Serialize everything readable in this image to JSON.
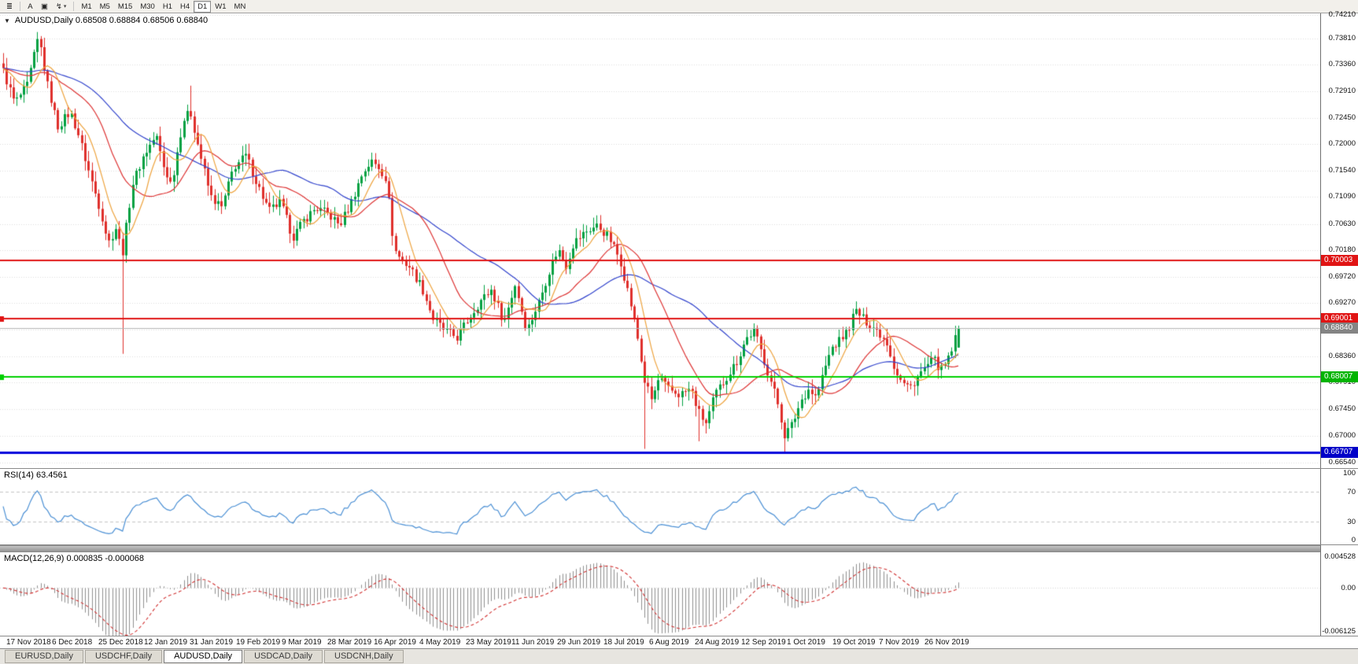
{
  "toolbar": {
    "icons": [
      {
        "name": "bar-chart-icon",
        "glyph": "≣"
      },
      {
        "name": "text-annotation-icon",
        "glyph": "A"
      },
      {
        "name": "template-icon",
        "glyph": "▣"
      },
      {
        "name": "indicators-zigzag-icon",
        "glyph": "↯",
        "caret": "▾"
      }
    ],
    "timeframes": [
      {
        "label": "M1"
      },
      {
        "label": "M5"
      },
      {
        "label": "M15"
      },
      {
        "label": "M30"
      },
      {
        "label": "H1"
      },
      {
        "label": "H4"
      },
      {
        "label": "D1",
        "active": true
      },
      {
        "label": "W1"
      },
      {
        "label": "MN"
      }
    ]
  },
  "chart": {
    "collapse_glyph": "▼",
    "title": "AUDUSD,Daily 0.68508 0.68884 0.68506 0.68840",
    "price_axis": [
      "0.74210",
      "0.73810",
      "0.73360",
      "0.72910",
      "0.72450",
      "0.72000",
      "0.71540",
      "0.71090",
      "0.70630",
      "0.70180",
      "0.69720",
      "0.69270",
      "0.68810",
      "0.68360",
      "0.67910",
      "0.67450",
      "0.67000",
      "0.66540"
    ]
  },
  "rsi": {
    "label": "RSI(14) 63.4561",
    "upper": 70,
    "lower": 30,
    "axis": [
      {
        "label": "100",
        "value": 100
      },
      {
        "label": "70",
        "value": 70
      },
      {
        "label": "30",
        "value": 30
      },
      {
        "label": "0",
        "value": 0
      }
    ]
  },
  "macd": {
    "label": "MACD(12,26,9) 0.000835 -0.000068",
    "axis": [
      {
        "label": "0.004528",
        "value": 0.004528
      },
      {
        "label": "0.00",
        "value": 0
      },
      {
        "label": "-0.006125",
        "value": -0.006125
      }
    ]
  },
  "dates": [
    "17 Nov 2018",
    "6 Dec 2018",
    "25 Dec 2018",
    "12 Jan 2019",
    "31 Jan 2019",
    "19 Feb 2019",
    "9 Mar 2019",
    "28 Mar 2019",
    "16 Apr 2019",
    "4 May 2019",
    "23 May 2019",
    "11 Jun 2019",
    "29 Jun 2019",
    "18 Jul 2019",
    "6 Aug 2019",
    "24 Aug 2019",
    "12 Sep 2019",
    "1 Oct 2019",
    "19 Oct 2019",
    "7 Nov 2019",
    "26 Nov 2019"
  ],
  "tabs": [
    {
      "label": "EURUSD,Daily"
    },
    {
      "label": "USDCHF,Daily"
    },
    {
      "label": "AUDUSD,Daily",
      "active": true
    },
    {
      "label": "USDCAD,Daily"
    },
    {
      "label": "USDCNH,Daily"
    }
  ],
  "colors": {
    "up": "#00a041",
    "down": "#df2f2b",
    "ma_fast": "#eda23c",
    "ma_mid": "#dd3333",
    "ma_slow": "#3244cc",
    "rsi_line": "#4a8fd4",
    "rsi_levels": "#c4c4c4",
    "macd_hist": "#8f8f8f",
    "macd_signal": "#d03030",
    "grid": "#dedede"
  },
  "chart_data": {
    "type": "candlestick",
    "symbol": "AUDUSD",
    "timeframe": "Daily",
    "last_ohlc": {
      "open": 0.68508,
      "high": 0.68884,
      "low": 0.68506,
      "close": 0.6884
    },
    "y_range": [
      0.6644,
      0.7424
    ],
    "n_candles": 281,
    "ma_periods": {
      "fast": 8,
      "mid": 21,
      "slow": 45
    },
    "rsi_period": 14,
    "rsi_value": 63.4561,
    "macd_params": [
      12,
      26,
      9
    ],
    "macd_values": [
      0.000835,
      -6.8e-05
    ],
    "macd_range": [
      -0.006125,
      0.004528
    ],
    "anchors": [
      [
        0.0,
        0.7325
      ],
      [
        0.012,
        0.727
      ],
      [
        0.025,
        0.73
      ],
      [
        0.037,
        0.7385
      ],
      [
        0.045,
        0.731
      ],
      [
        0.057,
        0.723
      ],
      [
        0.07,
        0.7255
      ],
      [
        0.078,
        0.722
      ],
      [
        0.09,
        0.715
      ],
      [
        0.102,
        0.7085
      ],
      [
        0.11,
        0.703
      ],
      [
        0.119,
        0.706
      ],
      [
        0.124,
        0.7005
      ],
      [
        0.135,
        0.713
      ],
      [
        0.147,
        0.718
      ],
      [
        0.16,
        0.7215
      ],
      [
        0.168,
        0.716
      ],
      [
        0.176,
        0.713
      ],
      [
        0.188,
        0.724
      ],
      [
        0.196,
        0.7255
      ],
      [
        0.205,
        0.719
      ],
      [
        0.217,
        0.711
      ],
      [
        0.229,
        0.709
      ],
      [
        0.241,
        0.716
      ],
      [
        0.254,
        0.718
      ],
      [
        0.266,
        0.713
      ],
      [
        0.278,
        0.7085
      ],
      [
        0.29,
        0.71
      ],
      [
        0.303,
        0.704
      ],
      [
        0.315,
        0.707
      ],
      [
        0.327,
        0.709
      ],
      [
        0.34,
        0.708
      ],
      [
        0.352,
        0.706
      ],
      [
        0.364,
        0.71
      ],
      [
        0.376,
        0.715
      ],
      [
        0.385,
        0.717
      ],
      [
        0.393,
        0.716
      ],
      [
        0.401,
        0.714
      ],
      [
        0.409,
        0.702
      ],
      [
        0.417,
        0.7
      ],
      [
        0.425,
        0.699
      ],
      [
        0.438,
        0.6955
      ],
      [
        0.45,
        0.69
      ],
      [
        0.462,
        0.688
      ],
      [
        0.475,
        0.6868
      ],
      [
        0.487,
        0.69
      ],
      [
        0.499,
        0.693
      ],
      [
        0.511,
        0.695
      ],
      [
        0.524,
        0.6895
      ],
      [
        0.536,
        0.696
      ],
      [
        0.542,
        0.692
      ],
      [
        0.548,
        0.688
      ],
      [
        0.561,
        0.693
      ],
      [
        0.573,
        0.699
      ],
      [
        0.581,
        0.702
      ],
      [
        0.589,
        0.699
      ],
      [
        0.597,
        0.703
      ],
      [
        0.61,
        0.705
      ],
      [
        0.622,
        0.706
      ],
      [
        0.634,
        0.704
      ],
      [
        0.646,
        0.7
      ],
      [
        0.655,
        0.694
      ],
      [
        0.663,
        0.688
      ],
      [
        0.671,
        0.6795
      ],
      [
        0.679,
        0.676
      ],
      [
        0.687,
        0.68
      ],
      [
        0.695,
        0.678
      ],
      [
        0.708,
        0.677
      ],
      [
        0.72,
        0.678
      ],
      [
        0.728,
        0.674
      ],
      [
        0.736,
        0.672
      ],
      [
        0.745,
        0.677
      ],
      [
        0.757,
        0.68
      ],
      [
        0.769,
        0.683
      ],
      [
        0.777,
        0.6865
      ],
      [
        0.786,
        0.688
      ],
      [
        0.794,
        0.684
      ],
      [
        0.802,
        0.68
      ],
      [
        0.81,
        0.676
      ],
      [
        0.818,
        0.67
      ],
      [
        0.826,
        0.672
      ],
      [
        0.835,
        0.676
      ],
      [
        0.843,
        0.678
      ],
      [
        0.851,
        0.6765
      ],
      [
        0.859,
        0.681
      ],
      [
        0.867,
        0.685
      ],
      [
        0.875,
        0.6862
      ],
      [
        0.884,
        0.688
      ],
      [
        0.892,
        0.6915
      ],
      [
        0.9,
        0.69
      ],
      [
        0.908,
        0.689
      ],
      [
        0.916,
        0.6878
      ],
      [
        0.925,
        0.686
      ],
      [
        0.933,
        0.6815
      ],
      [
        0.941,
        0.679
      ],
      [
        0.949,
        0.6782
      ],
      [
        0.957,
        0.68
      ],
      [
        0.966,
        0.6818
      ],
      [
        0.974,
        0.683
      ],
      [
        0.982,
        0.6812
      ],
      [
        0.99,
        0.6832
      ],
      [
        1.0,
        0.6884
      ]
    ],
    "events": [
      {
        "t": 0.037,
        "high": 0.7392
      },
      {
        "t": 0.124,
        "low": 0.684
      },
      {
        "t": 0.196,
        "high": 0.73
      },
      {
        "t": 0.671,
        "low": 0.6677
      },
      {
        "t": 0.728,
        "low": 0.669
      },
      {
        "t": 0.818,
        "low": 0.667
      },
      {
        "t": 0.892,
        "high": 0.693
      },
      {
        "t": 1.0,
        "open": 0.68508,
        "close": 0.6884,
        "high": 0.68884,
        "low": 0.68506
      }
    ],
    "levels": [
      {
        "value": 0.70003,
        "label": "0.70003",
        "kind": "resistance",
        "color": "#e01414",
        "width": 2,
        "tag_bg": "#e01414"
      },
      {
        "value": 0.69001,
        "label": "0.69001",
        "kind": "resistance",
        "color": "#e01414",
        "width": 2,
        "tag_bg": "#e01414",
        "marker": true
      },
      {
        "value": 0.6884,
        "label": "0.68840",
        "kind": "bid",
        "color": "#b4b4b4",
        "width": 1,
        "tag_bg": "#848484"
      },
      {
        "value": 0.68007,
        "label": "0.68007",
        "kind": "support",
        "color": "#00d000",
        "width": 2,
        "tag_bg": "#00b400",
        "marker": true
      },
      {
        "value": 0.66707,
        "label": "0.66707",
        "kind": "support",
        "color": "#0000dc",
        "width": 3,
        "tag_bg": "#0000c8"
      }
    ]
  }
}
